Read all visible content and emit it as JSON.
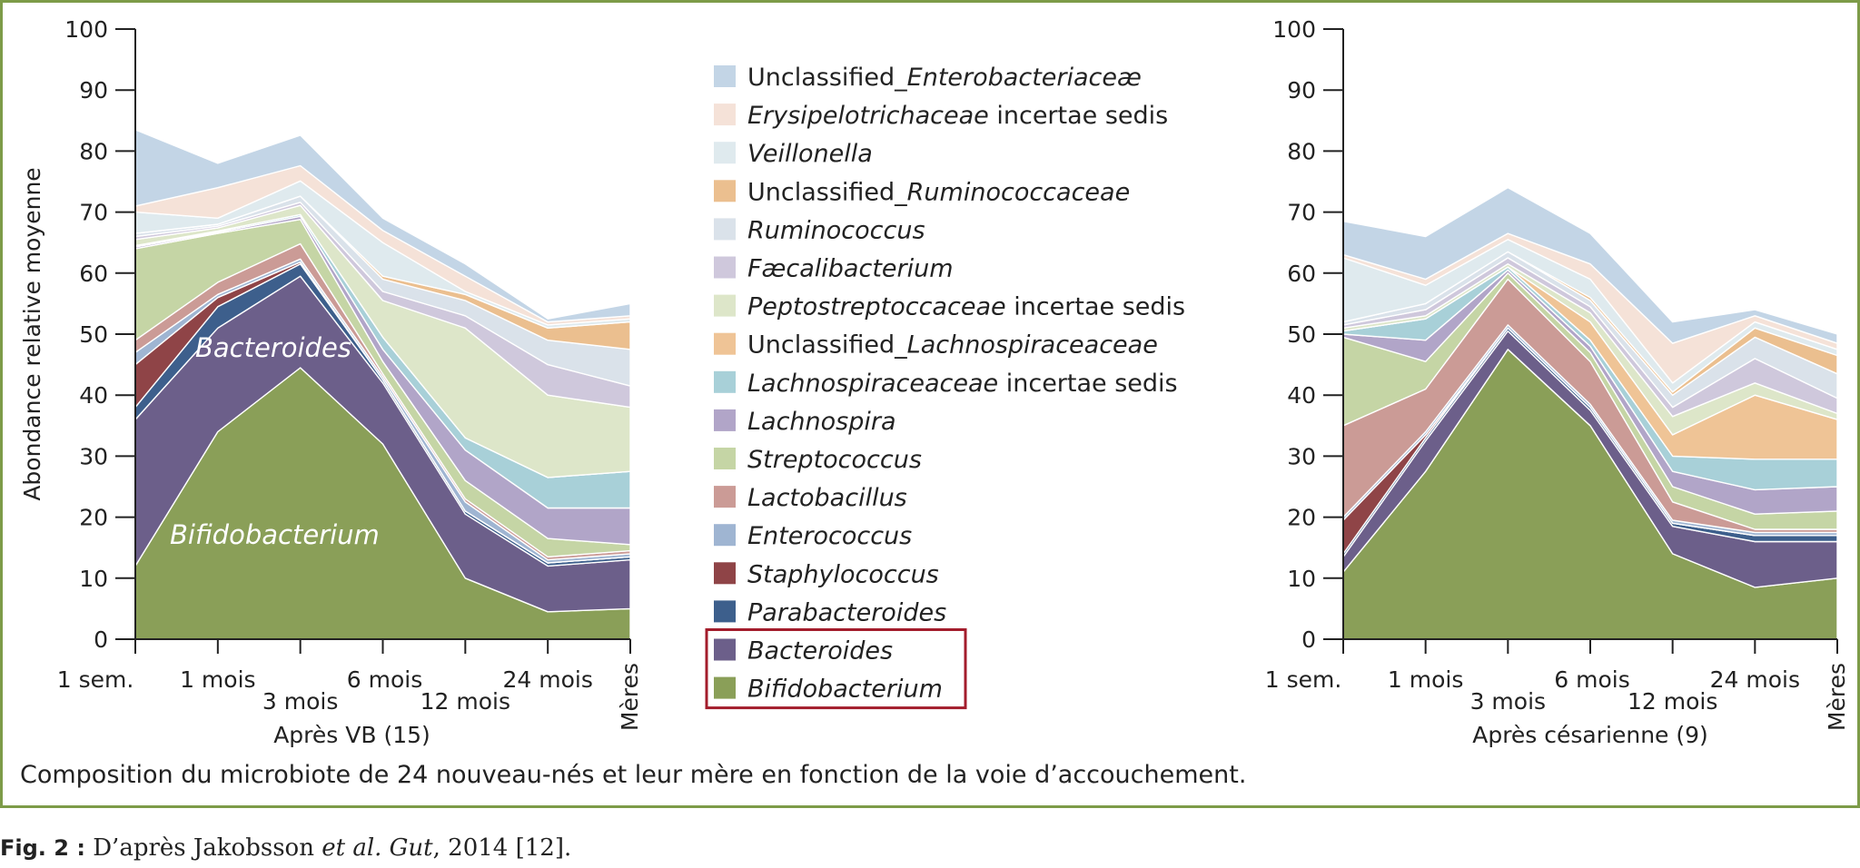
{
  "colors": {
    "frame": "#7d9b48",
    "highlight_box": "#a31d2c",
    "series": {
      "Bifidobacterium": "#8a9f58",
      "Bacteroides": "#6c5f8a",
      "Parabacteroides": "#3d5f8c",
      "Staphylococcus": "#8f4447",
      "Enterococcus": "#9fb5d2",
      "Lactobacillus": "#cb9b96",
      "Streptococcus": "#c5d5a5",
      "Lachnospira": "#b1a5c8",
      "Lachnospiraceaceae incertae sedis": "#a8d0d8",
      "Unclassified_Lachnospiraceaceae": "#efc496",
      "Peptostreptoccaceae incertae sedis": "#dde6c9",
      "Faecalibacterium": "#cfc8dc",
      "Ruminococcus": "#dae2ea",
      "Unclassified_Ruminococcaceae": "#ebbf8f",
      "Veillonella": "#dfeaee",
      "Erysipelotrichaceae incertae sedis": "#f5e2d8",
      "Unclassified_Enterobacteriaceae": "#c3d5e6"
    }
  },
  "legend": [
    {
      "parts": [
        {
          "t": "Unclassified_",
          "i": false
        },
        {
          "t": "Enterobacteriaceæ",
          "i": true
        }
      ],
      "color_key": "Unclassified_Enterobacteriaceae"
    },
    {
      "parts": [
        {
          "t": "Erysipelotrichaceae",
          "i": true
        },
        {
          "t": " incertae sedis",
          "i": false
        }
      ],
      "color_key": "Erysipelotrichaceae incertae sedis"
    },
    {
      "parts": [
        {
          "t": "Veillonella",
          "i": true
        }
      ],
      "color_key": "Veillonella"
    },
    {
      "parts": [
        {
          "t": "Unclassified_",
          "i": false
        },
        {
          "t": "Ruminococcaceae",
          "i": true
        }
      ],
      "color_key": "Unclassified_Ruminococcaceae"
    },
    {
      "parts": [
        {
          "t": "Ruminococcus",
          "i": true
        }
      ],
      "color_key": "Ruminococcus"
    },
    {
      "parts": [
        {
          "t": "Fæcalibacterium",
          "i": true
        }
      ],
      "color_key": "Faecalibacterium"
    },
    {
      "parts": [
        {
          "t": "Peptostreptoccaceae",
          "i": true
        },
        {
          "t": " incertae sedis",
          "i": false
        }
      ],
      "color_key": "Peptostreptoccaceae incertae sedis"
    },
    {
      "parts": [
        {
          "t": "Unclassified_",
          "i": false
        },
        {
          "t": "Lachnospiraceaceae",
          "i": true
        }
      ],
      "color_key": "Unclassified_Lachnospiraceaceae"
    },
    {
      "parts": [
        {
          "t": "Lachnospiraceaceae",
          "i": true
        },
        {
          "t": " incertae sedis",
          "i": false
        }
      ],
      "color_key": "Lachnospiraceaceae incertae sedis"
    },
    {
      "parts": [
        {
          "t": "Lachnospira",
          "i": true
        }
      ],
      "color_key": "Lachnospira"
    },
    {
      "parts": [
        {
          "t": "Streptococcus",
          "i": true
        }
      ],
      "color_key": "Streptococcus"
    },
    {
      "parts": [
        {
          "t": "Lactobacillus",
          "i": true
        }
      ],
      "color_key": "Lactobacillus"
    },
    {
      "parts": [
        {
          "t": "Enterococcus",
          "i": true
        }
      ],
      "color_key": "Enterococcus"
    },
    {
      "parts": [
        {
          "t": "Staphylococcus",
          "i": true
        }
      ],
      "color_key": "Staphylococcus"
    },
    {
      "parts": [
        {
          "t": "Parabacteroides",
          "i": true
        }
      ],
      "color_key": "Parabacteroides"
    },
    {
      "parts": [
        {
          "t": "Bacteroides",
          "i": true
        }
      ],
      "color_key": "Bacteroides"
    },
    {
      "parts": [
        {
          "t": "Bifidobacterium",
          "i": true
        }
      ],
      "color_key": "Bifidobacterium"
    }
  ],
  "highlighted_legend_entries": [
    "Bacteroides",
    "Bifidobacterium"
  ],
  "chart_data": [
    {
      "type": "area",
      "stacked": true,
      "title": "",
      "xlabel": "Après VB (15)",
      "ylabel": "Abondance relative moyenne",
      "ylim": [
        0,
        100
      ],
      "yticks": [
        "0",
        "10",
        "20",
        "30",
        "40",
        "50",
        "60",
        "70",
        "80",
        "90",
        "100"
      ],
      "categories": [
        "1 sem.",
        "1 mois",
        "3 mois",
        "6 mois",
        "12 mois",
        "24 mois",
        "Mères"
      ],
      "annotations": [
        "Bacteroides",
        "Bifidobacterium"
      ],
      "series": [
        {
          "name": "Bifidobacterium",
          "values": [
            12,
            34,
            44.5,
            32,
            10,
            4.5,
            5
          ]
        },
        {
          "name": "Bacteroides",
          "values": [
            24,
            17,
            15,
            10,
            10.5,
            7.5,
            8
          ]
        },
        {
          "name": "Parabacteroides",
          "values": [
            2,
            3.5,
            2,
            0.5,
            0.5,
            0.5,
            0.5
          ]
        },
        {
          "name": "Staphylococcus",
          "values": [
            7,
            1.5,
            0.3,
            0,
            0,
            0,
            0
          ]
        },
        {
          "name": "Enterococcus",
          "values": [
            2,
            0.5,
            0.5,
            0.5,
            1.5,
            0.5,
            0.5
          ]
        },
        {
          "name": "Lactobacillus",
          "values": [
            2,
            2,
            2.5,
            0.5,
            0.5,
            0.5,
            0.5
          ]
        },
        {
          "name": "Streptococcus",
          "values": [
            15,
            8,
            4,
            2,
            3,
            3,
            1
          ]
        },
        {
          "name": "Lachnospira",
          "values": [
            0.3,
            0.2,
            0.5,
            2,
            5,
            5,
            6
          ]
        },
        {
          "name": "Lachnospiraceaceae incertae sedis",
          "values": [
            0.2,
            0.2,
            0.3,
            2,
            2,
            5,
            6
          ]
        },
        {
          "name": "Unclassified_Lachnospiraceaceae",
          "values": [
            0,
            0,
            0,
            0,
            0,
            0,
            0
          ]
        },
        {
          "name": "Peptostreptoccaceae incertae sedis",
          "values": [
            1,
            0.5,
            1.5,
            6,
            18,
            13.5,
            10.5
          ]
        },
        {
          "name": "Faecalibacterium",
          "values": [
            0.5,
            0.3,
            0.5,
            1.5,
            2,
            5,
            3.5
          ]
        },
        {
          "name": "Ruminococcus",
          "values": [
            0.5,
            0.3,
            1,
            2,
            2.5,
            4,
            6
          ]
        },
        {
          "name": "Unclassified_Ruminococcaceae",
          "values": [
            0,
            0,
            0,
            0.5,
            1,
            2,
            4.5
          ]
        },
        {
          "name": "Veillonella",
          "values": [
            3.5,
            1,
            2.5,
            5.5,
            0.5,
            0.5,
            0.5
          ]
        },
        {
          "name": "Erysipelotrichaceae incertae sedis",
          "values": [
            1,
            5,
            2.5,
            2,
            2.5,
            0.5,
            0.5
          ]
        },
        {
          "name": "Unclassified_Enterobacteriaceae",
          "values": [
            12.5,
            4,
            5,
            2,
            2,
            0.5,
            2
          ]
        }
      ]
    },
    {
      "type": "area",
      "stacked": true,
      "title": "",
      "xlabel": "Après césarienne (9)",
      "ylabel": "",
      "ylim": [
        0,
        100
      ],
      "yticks": [
        "0",
        "10",
        "20",
        "30",
        "40",
        "50",
        "60",
        "70",
        "80",
        "90",
        "100"
      ],
      "categories": [
        "1 sem.",
        "1 mois",
        "3 mois",
        "6 mois",
        "12 mois",
        "24 mois",
        "Mères"
      ],
      "series": [
        {
          "name": "Bifidobacterium",
          "values": [
            11,
            27.5,
            47.5,
            35,
            14,
            8.5,
            10
          ]
        },
        {
          "name": "Bacteroides",
          "values": [
            2.5,
            5,
            3,
            2.5,
            4.5,
            7.5,
            6
          ]
        },
        {
          "name": "Parabacteroides",
          "values": [
            0.5,
            0.5,
            0.5,
            0.5,
            0.5,
            1,
            1
          ]
        },
        {
          "name": "Staphylococcus",
          "values": [
            5.5,
            0.5,
            0,
            0,
            0,
            0,
            0
          ]
        },
        {
          "name": "Enterococcus",
          "values": [
            0.5,
            0.5,
            0.5,
            0.5,
            0.5,
            0.5,
            0.5
          ]
        },
        {
          "name": "Lactobacillus",
          "values": [
            15,
            7,
            7.5,
            7,
            3,
            0.5,
            0.5
          ]
        },
        {
          "name": "Streptococcus",
          "values": [
            14.5,
            4.5,
            1,
            1.5,
            2.5,
            2.5,
            3
          ]
        },
        {
          "name": "Lachnospira",
          "values": [
            0.5,
            3.5,
            0.5,
            1,
            2.5,
            4,
            4
          ]
        },
        {
          "name": "Lachnospiraceaceae incertae sedis",
          "values": [
            0.5,
            3.5,
            0.5,
            1,
            2.5,
            5,
            4.5
          ]
        },
        {
          "name": "Unclassified_Lachnospiraceaceae",
          "values": [
            0,
            0,
            0,
            3,
            3.5,
            10.5,
            6.5
          ]
        },
        {
          "name": "Peptostreptoccaceae incertae sedis",
          "values": [
            0.5,
            0.5,
            0.5,
            1.5,
            3,
            2,
            1
          ]
        },
        {
          "name": "Faecalibacterium",
          "values": [
            0.5,
            1,
            1,
            1,
            1.5,
            4,
            2.5
          ]
        },
        {
          "name": "Ruminococcus",
          "values": [
            0.5,
            1,
            1,
            1,
            2,
            3.5,
            4
          ]
        },
        {
          "name": "Unclassified_Ruminococcaceae",
          "values": [
            0,
            0,
            0,
            0.5,
            0.5,
            1.5,
            3
          ]
        },
        {
          "name": "Veillonella",
          "values": [
            10.5,
            3,
            2,
            3,
            1.5,
            1,
            1
          ]
        },
        {
          "name": "Erysipelotrichaceae incertae sedis",
          "values": [
            0.5,
            1,
            1,
            2.5,
            6.5,
            1,
            1
          ]
        },
        {
          "name": "Unclassified_Enterobacteriaceae",
          "values": [
            5.5,
            7,
            7.5,
            5,
            3.5,
            1,
            1.5
          ]
        }
      ]
    }
  ],
  "caption": "Composition du microbiote de 24 nouveau-nés et leur mère en fonction de la voie d’accouchement.",
  "footnote": {
    "fig_ref": "Fig. 2 :",
    "text_before": " D’après Jakobsson ",
    "italic": "et al. Gut",
    "text_after": ", 2014 [12]."
  }
}
